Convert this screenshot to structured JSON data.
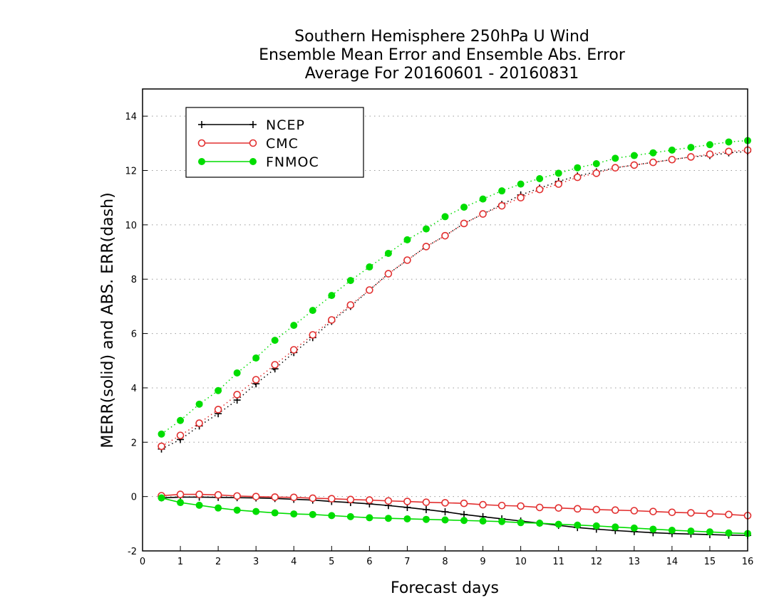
{
  "chart_data": {
    "type": "line",
    "title_lines": [
      "Southern Hemisphere 250hPa U Wind",
      "Ensemble Mean Error and Ensemble Abs. Error",
      "Average For 20160601 - 20160831"
    ],
    "xlabel": "Forecast days",
    "ylabel": "MERR(solid) and ABS. ERR(dash)",
    "xlim": [
      0,
      16
    ],
    "ylim": [
      -2,
      15
    ],
    "xticks": [
      "0",
      "1",
      "2",
      "3",
      "4",
      "5",
      "6",
      "7",
      "8",
      "9",
      "10",
      "11",
      "12",
      "13",
      "14",
      "15",
      "16"
    ],
    "yticks": [
      "-2",
      "0",
      "2",
      "4",
      "6",
      "8",
      "10",
      "12",
      "14"
    ],
    "grid": "horizontal-dotted",
    "legend_position": "top-left",
    "x": [
      0.5,
      1,
      1.5,
      2,
      2.5,
      3,
      3.5,
      4,
      4.5,
      5,
      5.5,
      6,
      6.5,
      7,
      7.5,
      8,
      8.5,
      9,
      9.5,
      10,
      10.5,
      11,
      11.5,
      12,
      12.5,
      13,
      13.5,
      14,
      14.5,
      15,
      15.5,
      16
    ],
    "series": [
      {
        "name": "NCEP",
        "color": "#000000",
        "marker": "plus",
        "abs_err": [
          1.75,
          2.1,
          2.6,
          3.05,
          3.55,
          4.15,
          4.7,
          5.3,
          5.85,
          6.45,
          7.0,
          7.6,
          8.2,
          8.7,
          9.2,
          9.6,
          10.05,
          10.4,
          10.75,
          11.1,
          11.35,
          11.6,
          11.8,
          11.95,
          12.1,
          12.2,
          12.3,
          12.4,
          12.5,
          12.55,
          12.65,
          12.7
        ],
        "mean_err": [
          -0.05,
          -0.02,
          -0.02,
          -0.03,
          -0.04,
          -0.05,
          -0.07,
          -0.1,
          -0.13,
          -0.18,
          -0.22,
          -0.27,
          -0.33,
          -0.4,
          -0.48,
          -0.56,
          -0.66,
          -0.74,
          -0.82,
          -0.9,
          -0.98,
          -1.06,
          -1.14,
          -1.2,
          -1.25,
          -1.29,
          -1.33,
          -1.36,
          -1.38,
          -1.4,
          -1.42,
          -1.43
        ]
      },
      {
        "name": "CMC",
        "color": "#e23030",
        "marker": "open-circle",
        "abs_err": [
          1.85,
          2.25,
          2.7,
          3.2,
          3.75,
          4.3,
          4.85,
          5.4,
          5.95,
          6.5,
          7.05,
          7.6,
          8.2,
          8.7,
          9.2,
          9.6,
          10.05,
          10.4,
          10.7,
          11.0,
          11.3,
          11.5,
          11.75,
          11.9,
          12.1,
          12.2,
          12.3,
          12.4,
          12.5,
          12.6,
          12.7,
          12.75
        ],
        "mean_err": [
          0.03,
          0.08,
          0.08,
          0.06,
          0.02,
          0.0,
          -0.02,
          -0.03,
          -0.06,
          -0.08,
          -0.11,
          -0.13,
          -0.16,
          -0.18,
          -0.21,
          -0.23,
          -0.25,
          -0.3,
          -0.33,
          -0.35,
          -0.4,
          -0.42,
          -0.45,
          -0.48,
          -0.5,
          -0.52,
          -0.55,
          -0.58,
          -0.6,
          -0.63,
          -0.66,
          -0.7
        ]
      },
      {
        "name": "FNMOC",
        "color": "#00dd00",
        "marker": "filled-circle",
        "abs_err": [
          2.3,
          2.8,
          3.4,
          3.9,
          4.55,
          5.1,
          5.75,
          6.3,
          6.85,
          7.4,
          7.95,
          8.45,
          8.95,
          9.45,
          9.85,
          10.3,
          10.65,
          10.95,
          11.25,
          11.5,
          11.7,
          11.9,
          12.1,
          12.25,
          12.45,
          12.55,
          12.65,
          12.75,
          12.85,
          12.95,
          13.05,
          13.1
        ],
        "mean_err": [
          -0.05,
          -0.22,
          -0.32,
          -0.42,
          -0.5,
          -0.55,
          -0.6,
          -0.64,
          -0.66,
          -0.7,
          -0.74,
          -0.78,
          -0.8,
          -0.82,
          -0.84,
          -0.86,
          -0.88,
          -0.9,
          -0.92,
          -0.96,
          -0.98,
          -1.02,
          -1.05,
          -1.08,
          -1.12,
          -1.16,
          -1.2,
          -1.24,
          -1.27,
          -1.3,
          -1.34,
          -1.36
        ]
      }
    ]
  }
}
